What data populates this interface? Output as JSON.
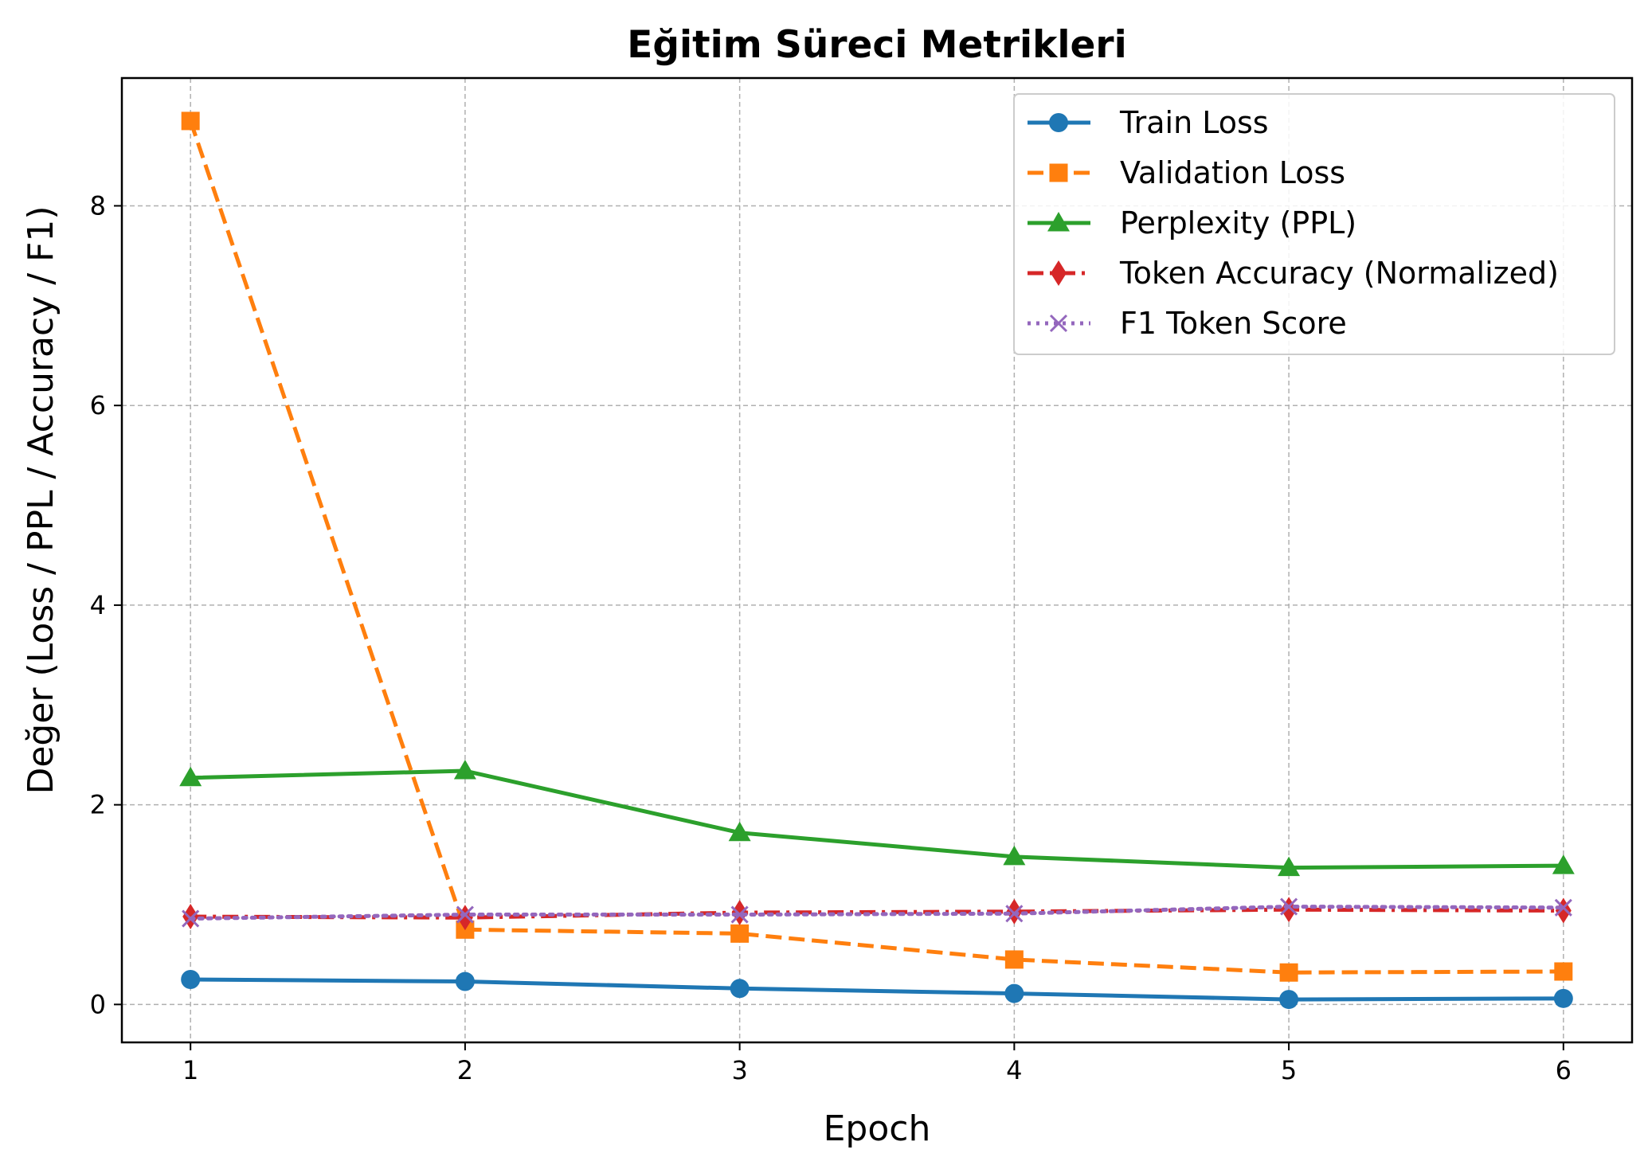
{
  "chart_data": {
    "type": "line",
    "title": "Eğitim Süreci Metrikleri",
    "xlabel": "Epoch",
    "ylabel": "Değer (Loss / PPL / Accuracy / F1)",
    "x": [
      1,
      2,
      3,
      4,
      5,
      6
    ],
    "xticks": [
      "1",
      "2",
      "3",
      "4",
      "5",
      "6"
    ],
    "yticks": [
      "0",
      "2",
      "4",
      "6",
      "8"
    ],
    "xlim": [
      0.75,
      6.25
    ],
    "ylim": [
      -0.38,
      9.28
    ],
    "grid": true,
    "legend_position": "top-right",
    "series": [
      {
        "name": "Train Loss",
        "values": [
          0.25,
          0.23,
          0.16,
          0.11,
          0.05,
          0.06
        ],
        "color": "#1f77b4",
        "marker": "circle",
        "line": "solid"
      },
      {
        "name": "Validation Loss",
        "values": [
          8.85,
          0.75,
          0.71,
          0.45,
          0.32,
          0.33
        ],
        "color": "#ff7f0e",
        "marker": "square",
        "line": "dashed"
      },
      {
        "name": "Perplexity (PPL)",
        "values": [
          2.27,
          2.34,
          1.72,
          1.48,
          1.37,
          1.39
        ],
        "color": "#2ca02c",
        "marker": "triangle",
        "line": "solid"
      },
      {
        "name": "Token Accuracy (Normalized)",
        "values": [
          0.88,
          0.87,
          0.92,
          0.93,
          0.95,
          0.94
        ],
        "color": "#d62728",
        "marker": "diamond",
        "line": "dashdot"
      },
      {
        "name": "F1 Token Score",
        "values": [
          0.86,
          0.9,
          0.9,
          0.91,
          0.98,
          0.97
        ],
        "color": "#9467bd",
        "marker": "x",
        "line": "dotted"
      }
    ]
  }
}
